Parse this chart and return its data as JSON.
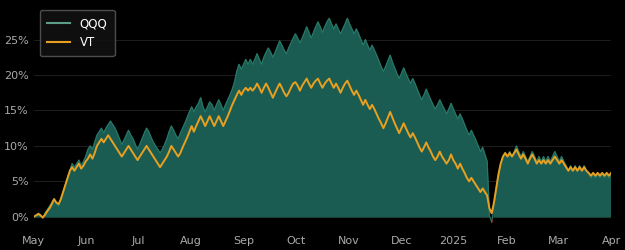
{
  "background_color": "#000000",
  "plot_bg_color": "#000000",
  "fill_color": "#1a5c52",
  "qqq_line_color": "#2a7a68",
  "vt_line_color": "#e8a020",
  "legend_text_color": "#ffffff",
  "axis_label_color": "#aaaaaa",
  "grid_color": "#2a2a2a",
  "ylim": [
    -2,
    30
  ],
  "yticks": [
    0,
    5,
    10,
    15,
    20,
    25
  ],
  "ytick_labels": [
    "0%",
    "5%",
    "10%",
    "15%",
    "20%",
    "25%"
  ],
  "x_labels": [
    "May",
    "Jun",
    "Jul",
    "Aug",
    "Sep",
    "Oct",
    "Nov",
    "Dec",
    "2025",
    "Feb",
    "Mar",
    "Apr"
  ],
  "qqq_data": [
    0.0,
    0.2,
    0.5,
    0.3,
    -0.2,
    0.5,
    1.0,
    1.5,
    2.0,
    2.5,
    2.0,
    1.5,
    2.5,
    3.5,
    4.5,
    5.5,
    6.5,
    7.5,
    7.0,
    7.5,
    8.0,
    7.2,
    7.8,
    8.5,
    9.5,
    10.0,
    9.5,
    10.5,
    11.5,
    12.0,
    12.5,
    11.8,
    12.5,
    13.0,
    13.5,
    13.0,
    12.5,
    11.8,
    11.0,
    10.2,
    10.8,
    11.5,
    12.2,
    11.5,
    11.0,
    10.2,
    9.5,
    10.2,
    11.0,
    11.8,
    12.5,
    12.0,
    11.2,
    10.5,
    10.0,
    9.5,
    9.0,
    9.5,
    10.2,
    11.0,
    12.0,
    12.8,
    12.2,
    11.5,
    11.0,
    11.8,
    12.5,
    13.2,
    14.0,
    14.8,
    15.5,
    14.8,
    15.5,
    16.0,
    16.8,
    15.5,
    14.8,
    15.5,
    16.2,
    15.8,
    15.0,
    15.8,
    16.5,
    15.8,
    15.0,
    15.8,
    16.5,
    17.2,
    18.0,
    19.0,
    20.5,
    21.5,
    20.8,
    21.5,
    22.2,
    21.5,
    22.2,
    21.5,
    22.2,
    23.0,
    22.2,
    21.5,
    22.5,
    23.2,
    23.8,
    23.2,
    22.5,
    23.2,
    24.0,
    24.8,
    24.2,
    23.5,
    23.0,
    23.8,
    24.5,
    25.2,
    25.8,
    25.2,
    24.5,
    25.2,
    26.0,
    26.8,
    26.0,
    25.2,
    26.0,
    26.8,
    27.5,
    26.8,
    26.0,
    26.8,
    27.5,
    28.0,
    27.2,
    26.5,
    27.2,
    26.5,
    25.8,
    26.5,
    27.2,
    28.0,
    27.2,
    26.5,
    25.8,
    26.5,
    25.8,
    25.0,
    24.2,
    25.0,
    24.2,
    23.5,
    24.2,
    23.5,
    22.8,
    22.0,
    21.2,
    20.5,
    21.2,
    22.0,
    22.8,
    21.8,
    21.0,
    20.2,
    19.5,
    20.2,
    21.0,
    20.2,
    19.5,
    18.8,
    19.5,
    18.8,
    18.0,
    17.2,
    16.5,
    17.2,
    18.0,
    17.2,
    16.5,
    15.8,
    15.2,
    15.8,
    16.5,
    15.8,
    15.2,
    14.5,
    15.2,
    16.0,
    15.2,
    14.5,
    13.8,
    14.5,
    13.8,
    13.0,
    12.2,
    11.5,
    12.2,
    11.5,
    10.8,
    10.0,
    9.2,
    9.8,
    8.8,
    7.8,
    0.2,
    -0.8,
    1.5,
    3.5,
    5.5,
    7.5,
    8.5,
    9.0,
    8.5,
    9.2,
    8.5,
    9.2,
    10.0,
    9.2,
    8.5,
    9.2,
    8.5,
    7.8,
    8.5,
    9.2,
    8.5,
    7.8,
    8.5,
    7.8,
    8.5,
    7.8,
    8.5,
    7.8,
    8.5,
    9.2,
    8.5,
    7.8,
    8.5,
    7.8,
    7.2,
    6.5,
    7.2,
    6.5,
    7.2,
    6.5,
    7.2,
    6.5,
    7.2,
    6.5,
    6.0,
    5.5,
    6.0,
    5.5,
    6.0,
    5.5,
    6.0,
    5.5,
    6.0,
    5.5,
    6.0
  ],
  "vt_data": [
    0.0,
    0.2,
    0.4,
    0.2,
    -0.1,
    0.3,
    0.8,
    1.2,
    1.8,
    2.5,
    2.0,
    1.8,
    2.5,
    3.5,
    4.5,
    5.5,
    6.5,
    7.0,
    6.5,
    7.0,
    7.5,
    6.8,
    7.2,
    7.8,
    8.2,
    8.8,
    8.2,
    9.0,
    10.0,
    10.5,
    11.0,
    10.5,
    11.0,
    11.5,
    11.0,
    10.5,
    10.0,
    9.5,
    9.0,
    8.5,
    9.0,
    9.5,
    10.0,
    9.5,
    9.0,
    8.5,
    8.0,
    8.5,
    9.0,
    9.5,
    10.0,
    9.5,
    9.0,
    8.5,
    8.0,
    7.5,
    7.0,
    7.5,
    8.0,
    8.5,
    9.2,
    10.0,
    9.5,
    9.0,
    8.5,
    9.0,
    9.8,
    10.5,
    11.2,
    12.0,
    12.8,
    12.0,
    12.8,
    13.5,
    14.2,
    13.5,
    12.8,
    13.5,
    14.2,
    13.5,
    12.8,
    13.5,
    14.2,
    13.5,
    12.8,
    13.5,
    14.2,
    15.0,
    15.8,
    16.5,
    17.2,
    17.8,
    17.2,
    17.8,
    18.2,
    17.8,
    18.2,
    17.8,
    18.2,
    18.8,
    18.2,
    17.5,
    18.2,
    18.8,
    18.2,
    17.5,
    16.8,
    17.5,
    18.2,
    18.8,
    18.2,
    17.5,
    17.0,
    17.5,
    18.2,
    18.8,
    19.0,
    18.5,
    17.8,
    18.5,
    19.0,
    19.5,
    18.8,
    18.2,
    18.8,
    19.2,
    19.5,
    18.8,
    18.2,
    18.8,
    19.2,
    19.5,
    18.8,
    18.2,
    18.8,
    18.2,
    17.5,
    18.2,
    18.8,
    19.2,
    18.5,
    17.8,
    17.2,
    17.8,
    17.2,
    16.5,
    15.8,
    16.5,
    15.8,
    15.2,
    15.8,
    15.2,
    14.5,
    13.8,
    13.2,
    12.5,
    13.2,
    14.0,
    14.8,
    14.0,
    13.2,
    12.5,
    11.8,
    12.5,
    13.2,
    12.5,
    11.8,
    11.2,
    11.8,
    11.2,
    10.5,
    9.8,
    9.2,
    9.8,
    10.5,
    9.8,
    9.2,
    8.5,
    8.0,
    8.5,
    9.2,
    8.5,
    8.0,
    7.5,
    8.0,
    8.8,
    8.0,
    7.5,
    6.8,
    7.5,
    6.8,
    6.2,
    5.5,
    5.0,
    5.5,
    5.0,
    4.5,
    4.0,
    3.5,
    4.0,
    3.5,
    3.0,
    1.2,
    0.5,
    2.0,
    4.0,
    6.0,
    7.5,
    8.5,
    9.0,
    8.5,
    9.0,
    8.5,
    9.0,
    9.5,
    8.8,
    8.2,
    8.8,
    8.2,
    7.5,
    8.2,
    8.8,
    8.2,
    7.5,
    8.0,
    7.5,
    8.0,
    7.5,
    8.0,
    7.5,
    8.0,
    8.5,
    8.0,
    7.5,
    8.0,
    7.5,
    7.0,
    6.5,
    7.0,
    6.5,
    7.0,
    6.5,
    7.0,
    6.5,
    7.0,
    6.5,
    6.2,
    5.8,
    6.2,
    5.8,
    6.2,
    5.8,
    6.2,
    5.8,
    6.2,
    5.8,
    6.2
  ]
}
